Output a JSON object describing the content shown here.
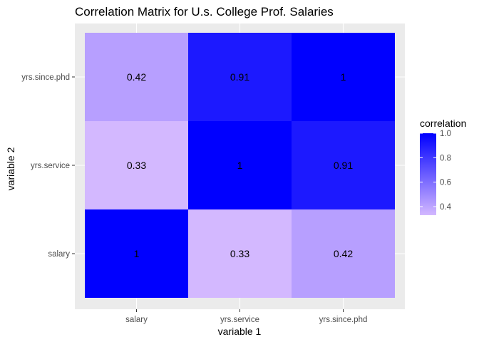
{
  "chart_data": {
    "type": "heatmap",
    "title": "Correlation Matrix for U.s. College Prof. Salaries",
    "xlabel": "variable 1",
    "ylabel": "variable 2",
    "x_categories": [
      "salary",
      "yrs.service",
      "yrs.since.phd"
    ],
    "y_categories": [
      "salary",
      "yrs.service",
      "yrs.since.phd"
    ],
    "cells": [
      {
        "x": "salary",
        "y": "salary",
        "value": 1,
        "label": "1"
      },
      {
        "x": "yrs.service",
        "y": "salary",
        "value": 0.33,
        "label": "0.33"
      },
      {
        "x": "yrs.since.phd",
        "y": "salary",
        "value": 0.42,
        "label": "0.42"
      },
      {
        "x": "salary",
        "y": "yrs.service",
        "value": 0.33,
        "label": "0.33"
      },
      {
        "x": "yrs.service",
        "y": "yrs.service",
        "value": 1,
        "label": "1"
      },
      {
        "x": "yrs.since.phd",
        "y": "yrs.service",
        "value": 0.91,
        "label": "0.91"
      },
      {
        "x": "salary",
        "y": "yrs.since.phd",
        "value": 0.42,
        "label": "0.42"
      },
      {
        "x": "yrs.service",
        "y": "yrs.since.phd",
        "value": 0.91,
        "label": "0.91"
      },
      {
        "x": "yrs.since.phd",
        "y": "yrs.since.phd",
        "value": 1,
        "label": "1"
      }
    ],
    "color_scale": {
      "low_color": "#d3b8ff",
      "high_color": "#0000ff",
      "min": 0.33,
      "max": 1.0
    },
    "legend": {
      "title": "correlation",
      "position": "right",
      "ticks": [
        {
          "value": 1.0,
          "label": "1.0"
        },
        {
          "value": 0.8,
          "label": "0.8"
        },
        {
          "value": 0.6,
          "label": "0.6"
        },
        {
          "value": 0.4,
          "label": "0.4"
        }
      ]
    },
    "panel_background": "#ebebeb",
    "gridline_color": "#ffffff",
    "grid": true
  }
}
